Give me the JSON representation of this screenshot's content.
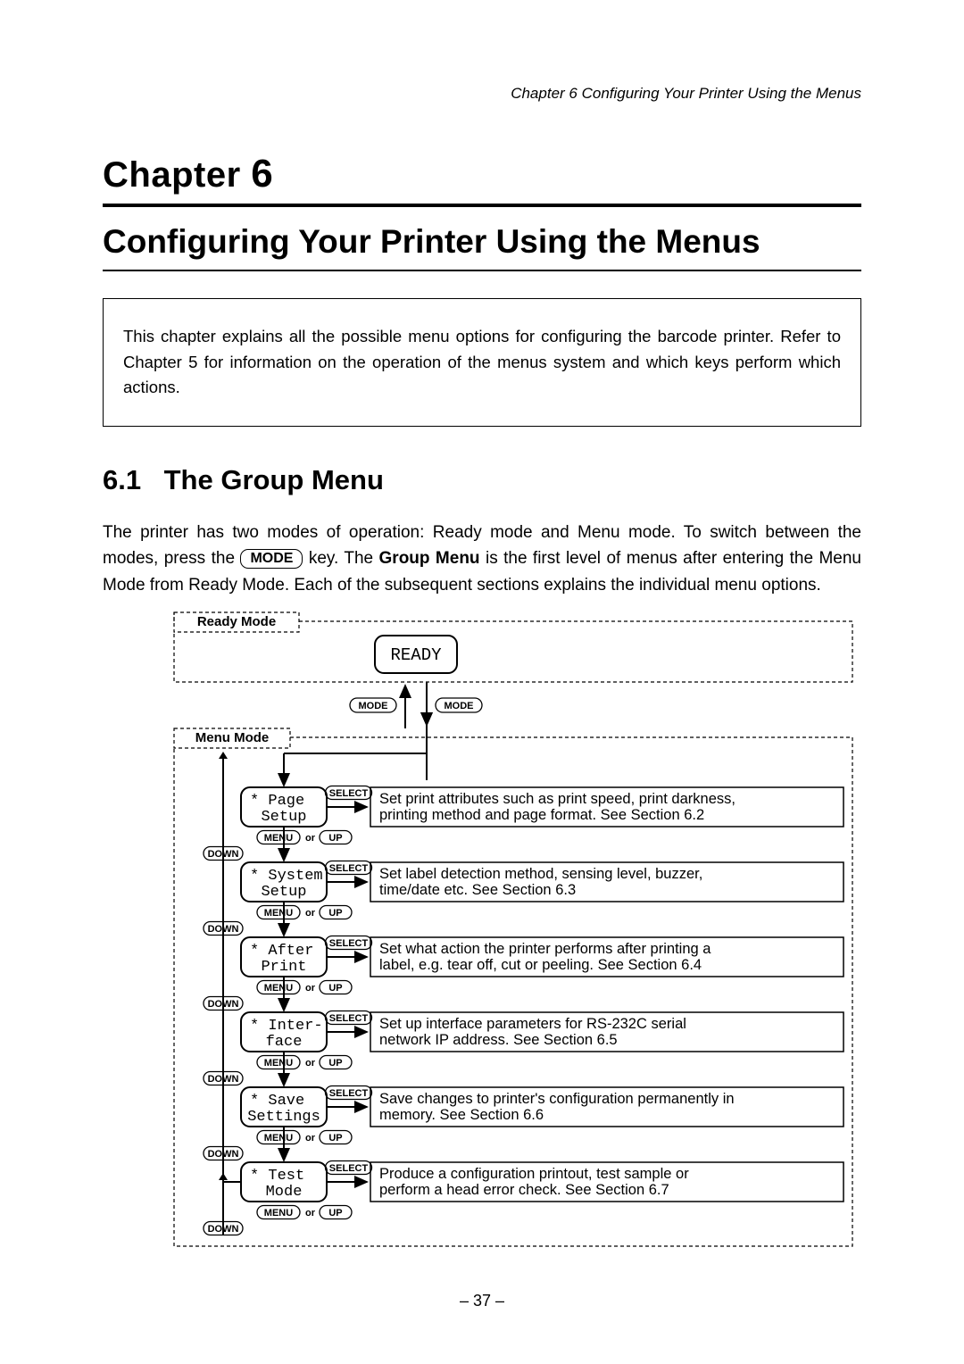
{
  "running_head": "Chapter 6   Configuring Your Printer Using the Menus",
  "chapter_label_word": "Chapter",
  "chapter_number": "6",
  "chapter_title": "Configuring Your Printer Using the Menus",
  "intro_text": "This chapter explains all the possible menu options for configuring the barcode printer. Refer to Chapter 5 for information on the operation of the menus system and which keys perform which actions.",
  "section_number": "6.1",
  "section_title": "The Group Menu",
  "body_before_key": "The printer has two modes of operation: Ready mode and Menu mode. To switch between the modes, press the ",
  "mode_key_label": "MODE",
  "body_after_key_1": " key. The ",
  "group_menu_bold": "Group Menu",
  "body_after_key_2": " is the first level of menus after entering the Menu Mode from Ready Mode. Each of the subsequent sections explains the individual menu options.",
  "page_number": "– 37 –",
  "diagram": {
    "type": "flowchart",
    "colors": {
      "stroke": "#000000",
      "fill_white": "#ffffff",
      "dashed_gap": "4 3"
    },
    "ready_mode_label": "Ready Mode",
    "menu_mode_label": "Menu Mode",
    "ready_box": "READY",
    "mode_button": "MODE",
    "nav_menu": "MENU",
    "nav_or": "or",
    "nav_up": "UP",
    "nav_down": "DOWN",
    "select_button": "SELECT",
    "items": [
      {
        "lcd_line1": "* Page",
        "lcd_line2": "Setup",
        "desc_line1": "Set print attributes such as print speed, print darkness,",
        "desc_line2": "printing method and page format. See Section 6.2"
      },
      {
        "lcd_line1": "* System",
        "lcd_line2": "Setup",
        "desc_line1": "Set label detection method, sensing level, buzzer,",
        "desc_line2": "time/date etc. See Section 6.3"
      },
      {
        "lcd_line1": "* After",
        "lcd_line2": "Print",
        "desc_line1": "Set what action the printer performs after printing a",
        "desc_line2": "label, e.g. tear off, cut or peeling.    See Section 6.4"
      },
      {
        "lcd_line1": "* Inter-",
        "lcd_line2": "face",
        "desc_line1": "Set up interface parameters for RS-232C serial",
        "desc_line2": "network IP address. See Section 6.5"
      },
      {
        "lcd_line1": "* Save",
        "lcd_line2": "Settings",
        "desc_line1": "Save changes to printer's configuration permanently in",
        "desc_line2": "memory. See Section 6.6"
      },
      {
        "lcd_line1": "* Test",
        "lcd_line2": "Mode",
        "desc_line1": "Produce a configuration printout, test sample or",
        "desc_line2": "perform a head error check. See Section 6.7"
      }
    ]
  }
}
